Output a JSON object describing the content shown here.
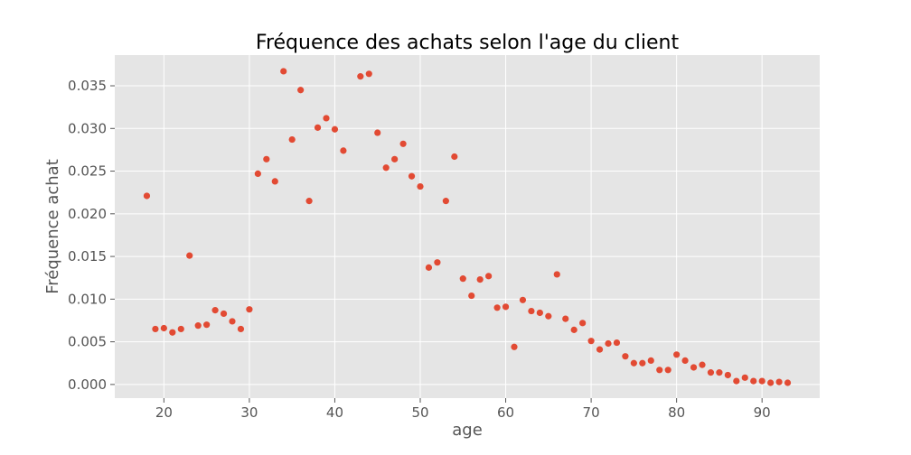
{
  "chart_data": {
    "type": "scatter",
    "title": "Fréquence des achats selon l'age du client",
    "xlabel": "age",
    "ylabel": "Fréquence achat",
    "xlim": [
      14.25,
      96.75
    ],
    "ylim": [
      -0.0016,
      0.0386
    ],
    "xticks": [
      20,
      30,
      40,
      50,
      60,
      70,
      80,
      90
    ],
    "yticks": [
      0.0,
      0.005,
      0.01,
      0.015,
      0.02,
      0.025,
      0.03,
      0.035
    ],
    "ytick_labels": [
      "0.000",
      "0.005",
      "0.010",
      "0.015",
      "0.020",
      "0.025",
      "0.030",
      "0.035"
    ],
    "grid": true,
    "series": [
      {
        "color": "#E24A33",
        "points": [
          [
            18,
            0.0221
          ],
          [
            19,
            0.0065
          ],
          [
            20,
            0.0066
          ],
          [
            21,
            0.0061
          ],
          [
            22,
            0.0065
          ],
          [
            23,
            0.0151
          ],
          [
            24,
            0.0069
          ],
          [
            25,
            0.007
          ],
          [
            26,
            0.0087
          ],
          [
            27,
            0.0083
          ],
          [
            28,
            0.0074
          ],
          [
            29,
            0.0065
          ],
          [
            30,
            0.0088
          ],
          [
            31,
            0.0247
          ],
          [
            32,
            0.0264
          ],
          [
            33,
            0.0238
          ],
          [
            34,
            0.0367
          ],
          [
            35,
            0.0287
          ],
          [
            36,
            0.0345
          ],
          [
            37,
            0.0215
          ],
          [
            38,
            0.0301
          ],
          [
            39,
            0.0312
          ],
          [
            40,
            0.0299
          ],
          [
            41,
            0.0274
          ],
          [
            43,
            0.0361
          ],
          [
            44,
            0.0364
          ],
          [
            45,
            0.0295
          ],
          [
            46,
            0.0254
          ],
          [
            47,
            0.0264
          ],
          [
            48,
            0.0282
          ],
          [
            49,
            0.0244
          ],
          [
            50,
            0.0232
          ],
          [
            51,
            0.0137
          ],
          [
            52,
            0.0143
          ],
          [
            53,
            0.0215
          ],
          [
            54,
            0.0267
          ],
          [
            55,
            0.0124
          ],
          [
            56,
            0.0104
          ],
          [
            57,
            0.0123
          ],
          [
            58,
            0.0127
          ],
          [
            59,
            0.009
          ],
          [
            60,
            0.0091
          ],
          [
            61,
            0.0044
          ],
          [
            62,
            0.0099
          ],
          [
            63,
            0.0086
          ],
          [
            64,
            0.0084
          ],
          [
            65,
            0.008
          ],
          [
            66,
            0.0129
          ],
          [
            67,
            0.0077
          ],
          [
            68,
            0.0064
          ],
          [
            69,
            0.0072
          ],
          [
            70,
            0.0051
          ],
          [
            71,
            0.0041
          ],
          [
            72,
            0.0048
          ],
          [
            73,
            0.0049
          ],
          [
            74,
            0.0033
          ],
          [
            75,
            0.0025
          ],
          [
            76,
            0.0025
          ],
          [
            77,
            0.0028
          ],
          [
            78,
            0.0017
          ],
          [
            79,
            0.0017
          ],
          [
            80,
            0.0035
          ],
          [
            81,
            0.0028
          ],
          [
            82,
            0.002
          ],
          [
            83,
            0.0023
          ],
          [
            84,
            0.0014
          ],
          [
            85,
            0.0014
          ],
          [
            86,
            0.0011
          ],
          [
            87,
            0.0004
          ],
          [
            88,
            0.0008
          ],
          [
            89,
            0.0004
          ],
          [
            90,
            0.0004
          ],
          [
            91,
            0.0002
          ],
          [
            92,
            0.0003
          ],
          [
            93,
            0.0002
          ]
        ]
      }
    ],
    "colors": {
      "plot_background": "#E5E5E5",
      "grid": "#FFFFFF",
      "marker": "#E24A33",
      "tick_text": "#555555",
      "title_text": "#000000"
    }
  }
}
